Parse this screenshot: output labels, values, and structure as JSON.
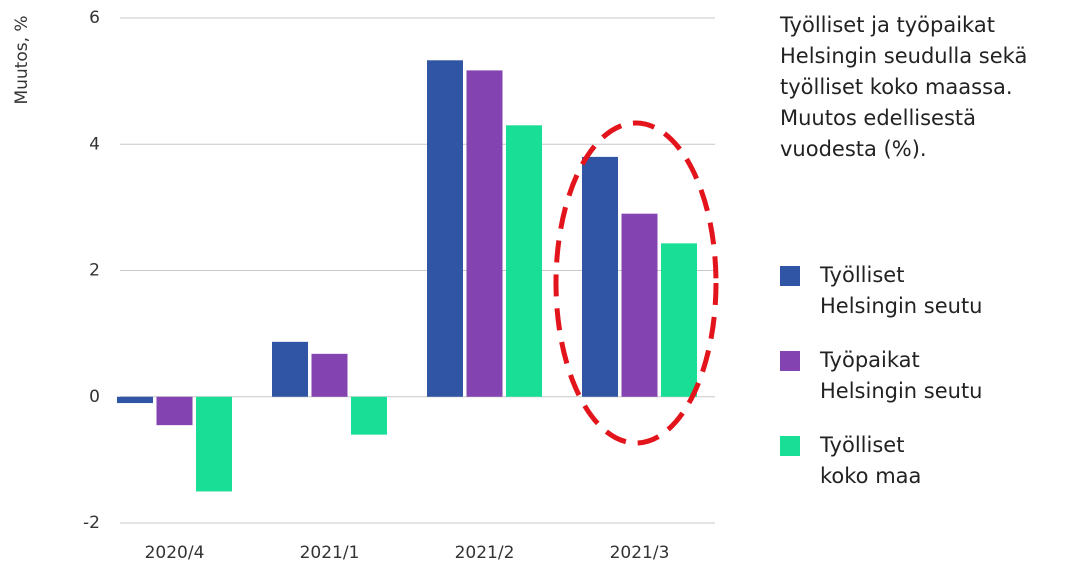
{
  "chart_data": {
    "type": "bar",
    "title": "Työlliset ja työpaikat\nHelsingin seudulla sekä\ntyölliset koko maassa.\nMuutos edellisestä\nvuodesta (%).",
    "y_label": "Muutos, %",
    "categories": [
      "2020/4",
      "2021/1",
      "2021/2",
      "2021/3"
    ],
    "series": [
      {
        "name": "Työlliset\nHelsingin seutu",
        "color": "#2f55a4",
        "values": [
          -0.1,
          0.87,
          5.33,
          3.8
        ]
      },
      {
        "name": "Työpaikat\nHelsingin seutu",
        "color": "#8343b0",
        "values": [
          -0.45,
          0.68,
          5.17,
          2.9
        ]
      },
      {
        "name": "Työlliset\nkoko maa",
        "color": "#18df95",
        "values": [
          -1.5,
          -0.6,
          4.3,
          2.43
        ]
      }
    ],
    "ylim": [
      -2,
      6
    ],
    "yticks": [
      -2,
      0,
      2,
      4,
      6
    ],
    "grid": true
  }
}
